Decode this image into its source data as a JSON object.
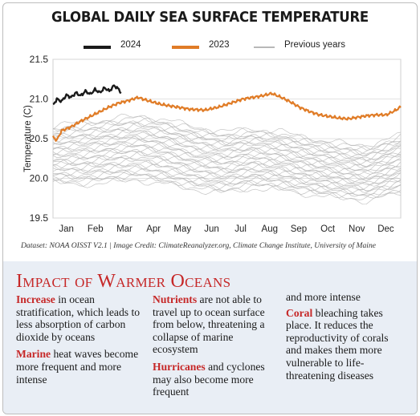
{
  "title": "GLOBAL DAILY SEA SURFACE TEMPERATURE",
  "legend": [
    {
      "label": "2024",
      "color": "#1a1a1a"
    },
    {
      "label": "2023",
      "color": "#e07c27"
    },
    {
      "label": "Previous years",
      "color": "#b8b8b8"
    }
  ],
  "caption": "Dataset: NOAA OISST V2.1 | Image Credit: ClimateReanalyzer.org, Climate Change Institute, University of Maine",
  "impact": {
    "heading": "Impact of Warmer Oceans",
    "items": [
      {
        "keyword": "Increase",
        "text": " in ocean stratification, which leads to less absorption of carbon dioxide by oceans"
      },
      {
        "keyword": "Marine",
        "text": " heat waves become more frequent and more intense"
      },
      {
        "keyword": "Nutrients",
        "text": " are not able to travel up to ocean surface from below, threatening a collapse of marine ecosystem"
      },
      {
        "keyword": "Hurricanes",
        "text": " and cyclones may also become more frequent"
      },
      {
        "lead": "and more intense"
      },
      {
        "keyword": "Coral",
        "text": " bleaching takes place. It reduces the reproductivity of corals and makes them more vulnerable to life-threatening diseases"
      }
    ]
  },
  "chart_data": {
    "type": "line",
    "title": "GLOBAL DAILY SEA SURFACE TEMPERATURE",
    "ylabel": "Temperature (C)",
    "xlabel": "",
    "ylim": [
      19.5,
      21.5
    ],
    "yticks": [
      "19.5",
      "20.0",
      "20.5",
      "21.0",
      "21.5"
    ],
    "months": [
      "Jan",
      "Feb",
      "Mar",
      "Apr",
      "May",
      "Jun",
      "Jul",
      "Aug",
      "Sep",
      "Oct",
      "Nov",
      "Dec"
    ],
    "grid": true,
    "legend_position": "top",
    "series": [
      {
        "name": "2024",
        "color": "#1a1a1a",
        "x": [
          1,
          5,
          10,
          15,
          20,
          25,
          30,
          35,
          40,
          45,
          50,
          55,
          60,
          65,
          70,
          72
        ],
        "y": [
          20.92,
          21.0,
          20.97,
          21.05,
          21.02,
          21.08,
          21.04,
          21.1,
          21.06,
          21.12,
          21.08,
          21.14,
          21.1,
          21.17,
          21.12,
          21.08
        ]
      },
      {
        "name": "2023",
        "color": "#e07c27",
        "x": [
          1,
          5,
          10,
          20,
          30,
          40,
          50,
          60,
          70,
          80,
          90,
          100,
          115,
          130,
          145,
          160,
          175,
          190,
          200,
          210,
          220,
          230,
          240,
          250,
          260,
          270,
          280,
          290,
          300,
          310,
          320,
          330,
          340,
          350,
          360,
          365
        ],
        "y": [
          20.52,
          20.48,
          20.6,
          20.65,
          20.72,
          20.78,
          20.84,
          20.9,
          20.95,
          20.98,
          21.02,
          20.98,
          20.93,
          20.9,
          20.87,
          20.86,
          20.9,
          20.96,
          21.0,
          21.02,
          21.04,
          21.07,
          21.02,
          20.96,
          20.89,
          20.84,
          20.8,
          20.78,
          20.76,
          20.75,
          20.77,
          20.79,
          20.8,
          20.8,
          20.86,
          20.9
        ]
      }
    ],
    "previous_years_band": {
      "name": "Previous years",
      "color": "#b8b8b8",
      "x": [
        1,
        30,
        60,
        90,
        120,
        150,
        180,
        210,
        240,
        270,
        300,
        330,
        365
      ],
      "low": [
        19.95,
        19.92,
        19.96,
        19.98,
        19.93,
        19.86,
        19.82,
        19.88,
        19.86,
        19.8,
        19.76,
        19.72,
        19.82
      ],
      "high": [
        20.65,
        20.7,
        20.74,
        20.78,
        20.73,
        20.64,
        20.58,
        20.62,
        20.58,
        20.5,
        20.44,
        20.4,
        20.54
      ]
    }
  }
}
